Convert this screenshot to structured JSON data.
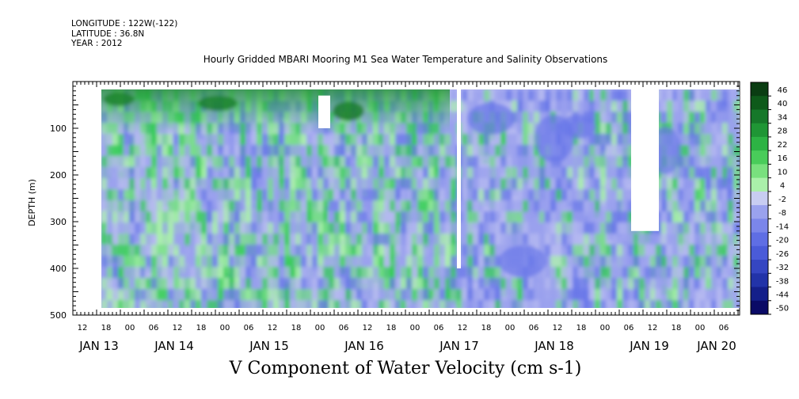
{
  "header": {
    "longitude": "LONGITUDE : 122W(-122)",
    "latitude": "LATITUDE : 36.8N",
    "year": "YEAR : 2012"
  },
  "chart_data": {
    "type": "heatmap",
    "title": "Hourly Gridded MBARI Mooring M1 Sea Water Temperature and Salinity Observations",
    "bottom_title": "V Component of Water Velocity (cm s-1)",
    "ylabel": "DEPTH (m)",
    "ylim": [
      500,
      0
    ],
    "y_ticks": [
      100,
      200,
      300,
      400,
      500
    ],
    "x_hour_ticks": [
      "12",
      "18",
      "00",
      "06",
      "12",
      "18",
      "00",
      "06",
      "12",
      "18",
      "00",
      "06",
      "12",
      "18",
      "00",
      "06",
      "12",
      "18",
      "00",
      "06",
      "12",
      "18",
      "00",
      "06",
      "12",
      "18",
      "00",
      "06"
    ],
    "x_day_labels": [
      "JAN 13",
      "JAN 14",
      "JAN 15",
      "JAN 16",
      "JAN 17",
      "JAN 18",
      "JAN 19",
      "JAN 20"
    ],
    "colorbar_labels": [
      "46",
      "40",
      "34",
      "28",
      "22",
      "16",
      "10",
      "4",
      "-2",
      "-8",
      "-14",
      "-20",
      "-26",
      "-32",
      "-38",
      "-44",
      "-50"
    ],
    "colorbar_min": -50,
    "colorbar_max": 50,
    "colors": {
      "strong_positive": "#0a5a14",
      "positive": "#33cc55",
      "weak_positive": "#aaf0aa",
      "weak_negative": "#b4b8f0",
      "negative": "#6a78e8",
      "strong_negative": "#0a0a80"
    },
    "data_window": {
      "start": "Jan 13 2012 18:00",
      "end": "Jan 20 2012 10:00",
      "depth_top_m": 20,
      "depth_bottom_m": 485
    },
    "missing_regions": [
      {
        "start": "Jan 15 2012 20:00",
        "end": "Jan 15 2012 23:00",
        "depth_top_m": 30,
        "depth_bottom_m": 100
      },
      {
        "start": "Jan 17 2012 07:00",
        "end": "Jan 17 2012 08:00",
        "depth_top_m": 0,
        "depth_bottom_m": 400
      },
      {
        "start": "Jan 19 2012 03:00",
        "end": "Jan 19 2012 10:00",
        "depth_top_m": 0,
        "depth_bottom_m": 320
      }
    ]
  }
}
